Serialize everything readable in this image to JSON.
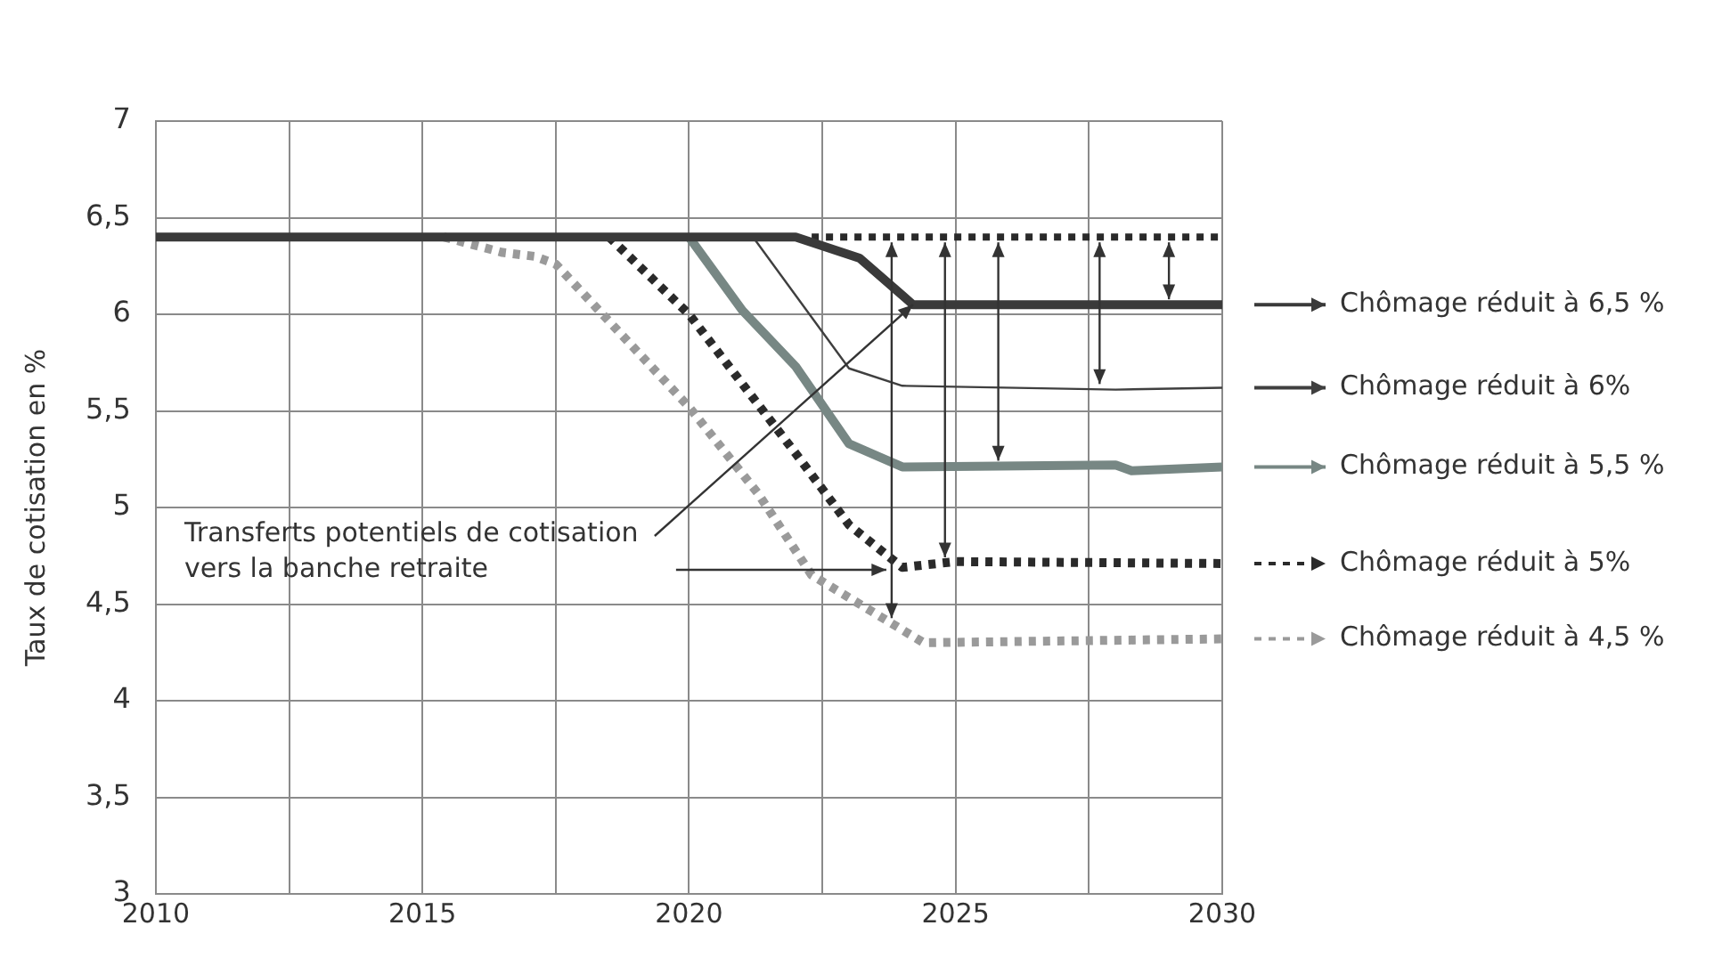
{
  "chart_data": {
    "type": "line",
    "ylabel": "Taux de cotisation en %",
    "xlim": [
      2010,
      2030
    ],
    "xticks": [
      2010,
      {
        "value": 2012.5,
        "label": null
      },
      2015,
      {
        "value": 2017.5,
        "label": null
      },
      2020,
      {
        "value": 2022.5,
        "label": null
      },
      2025,
      {
        "value": 2027.5,
        "label": null
      },
      2030
    ],
    "ylim": [
      3,
      7
    ],
    "yticks": [
      3,
      {
        "value": 3.5,
        "label": "3,5"
      },
      4,
      {
        "value": 4.5,
        "label": "4,5"
      },
      5,
      {
        "value": 5.5,
        "label": "5,5"
      },
      6,
      {
        "value": 6.5,
        "label": "6,5"
      },
      7
    ],
    "grid": true,
    "legend": "right",
    "marker": "none",
    "series": [
      {
        "name": "Chômage réduit à 6,5 %",
        "color": "#3a3a3a",
        "line_style": "solid",
        "x": [
          2010,
          2022,
          2023.2,
          2024.2,
          2030
        ],
        "values": [
          6.4,
          6.4,
          6.29,
          6.05,
          6.05
        ]
      },
      {
        "name": "Chômage réduit à 6%",
        "color": "#3f3f3f",
        "line_style": "solid",
        "x": [
          2021.2,
          2023,
          2024,
          2028,
          2030
        ],
        "values": [
          6.4,
          5.72,
          5.63,
          5.61,
          5.62
        ]
      },
      {
        "name": "Chômage réduit à 5,5 %",
        "color": "#778784",
        "line_style": "solid",
        "x": [
          2020,
          2021,
          2022,
          2023,
          2024,
          2028,
          2028.3,
          2030
        ],
        "values": [
          6.4,
          6.02,
          5.73,
          5.33,
          5.21,
          5.22,
          5.19,
          5.21
        ]
      },
      {
        "name": "Chômage réduit à 5%",
        "color": "#2a2a2a",
        "line_style": "dotted",
        "x": [
          2018.5,
          2020,
          2022,
          2023,
          2024,
          2025,
          2030
        ],
        "values": [
          6.4,
          6.0,
          5.28,
          4.91,
          4.69,
          4.72,
          4.71
        ]
      },
      {
        "name": "Chômage réduit à 4,5 %",
        "color": "#9a9a9a",
        "line_style": "dotted",
        "x": [
          2015.4,
          2016.5,
          2017.1,
          2017.5,
          2020,
          2021.3,
          2022.3,
          2023.8,
          2024.4,
          2030
        ],
        "values": [
          6.4,
          6.32,
          6.3,
          6.26,
          5.52,
          5.07,
          4.65,
          4.4,
          4.3,
          4.32
        ]
      },
      {
        "color": "#2a2a2a",
        "line_style": "dotted",
        "x": [
          2022.3,
          2030
        ],
        "values": [
          6.4,
          6.4
        ]
      }
    ],
    "annotations": [
      {
        "text": "Transferts potentiels de cotisation vers la banche retraite",
        "x": 2024.2,
        "y": 6.05
      }
    ]
  }
}
